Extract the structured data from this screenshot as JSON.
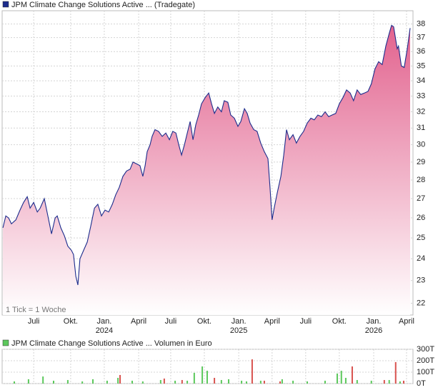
{
  "chart_data": [
    {
      "type": "area",
      "note": "1 Tick = 1 Woche",
      "log_scale": true,
      "grid": true,
      "fill": "#e2628e",
      "xlim": [
        -0.3,
        158.6
      ],
      "xticks": [
        {
          "value": 11.9,
          "label": "Juli"
        },
        {
          "value": 26.2,
          "label": "Okt."
        },
        {
          "value": 39.2,
          "label": "Jan."
        },
        {
          "value": 52.5,
          "label": "April"
        },
        {
          "value": 64.9,
          "label": "Juli"
        },
        {
          "value": 77.9,
          "label": "Okt."
        },
        {
          "value": 91.2,
          "label": "Jan."
        },
        {
          "value": 104.1,
          "label": "April"
        },
        {
          "value": 117.1,
          "label": "Juli"
        },
        {
          "value": 130.1,
          "label": "Okt."
        },
        {
          "value": 143.4,
          "label": "Jan."
        },
        {
          "value": 156.1,
          "label": "April"
        }
      ],
      "year_ticks": [
        {
          "value": 39.2,
          "label": "2024"
        },
        {
          "value": 91.2,
          "label": "2025"
        },
        {
          "value": 143.4,
          "label": "2026"
        }
      ],
      "ylim": [
        21.5,
        39
      ],
      "yticks": [
        22,
        23,
        24,
        25,
        26,
        27,
        28,
        29,
        30,
        31,
        32,
        33,
        34,
        35,
        36,
        37,
        38
      ],
      "x": [
        0,
        1.1,
        2.2,
        3.3,
        5.0,
        6.6,
        8.0,
        9.4,
        10.5,
        11.9,
        13.3,
        14.4,
        16.0,
        17.4,
        18.8,
        20.2,
        21.0,
        22.4,
        23.8,
        25.1,
        26.5,
        27.3,
        28.2,
        29.0,
        29.8,
        31.2,
        32.6,
        34.0,
        35.4,
        36.7,
        38.1,
        39.5,
        40.9,
        42.3,
        43.6,
        45.0,
        46.4,
        47.8,
        49.2,
        50.3,
        51.7,
        53.0,
        54.1,
        55.0,
        55.8,
        56.9,
        57.7,
        58.8,
        60.2,
        61.6,
        63.0,
        64.4,
        65.7,
        66.9,
        68.0,
        69.1,
        70.2,
        71.3,
        72.4,
        73.5,
        74.6,
        75.7,
        76.8,
        78.2,
        79.6,
        80.7,
        81.8,
        83.1,
        84.5,
        85.6,
        87.0,
        88.1,
        89.5,
        90.9,
        92.0,
        93.4,
        94.5,
        95.6,
        97.0,
        98.3,
        99.7,
        101.1,
        102.5,
        103.3,
        104.1,
        104.9,
        106.1,
        107.5,
        108.6,
        109.7,
        110.8,
        112.2,
        113.5,
        114.9,
        116.3,
        117.7,
        119.1,
        120.4,
        121.8,
        123.2,
        124.6,
        126.0,
        127.3,
        128.7,
        130.1,
        131.5,
        132.9,
        134.3,
        135.6,
        137.0,
        138.4,
        139.8,
        141.2,
        142.5,
        143.9,
        145.3,
        146.7,
        148.1,
        149.4,
        150.3,
        151.1,
        152.5,
        153.0,
        154.1,
        155.2,
        156.4,
        157.5
      ],
      "series": [
        {
          "name": "JPM Climate Change Solutions Active ... (Tradegate)",
          "color": "#1c2c8c",
          "values": [
            25.5,
            26.1,
            26.0,
            25.7,
            25.9,
            26.4,
            26.8,
            27.1,
            26.5,
            26.8,
            26.3,
            26.5,
            27.0,
            26.1,
            25.2,
            26.0,
            26.1,
            25.5,
            25.1,
            24.6,
            24.4,
            24.2,
            23.2,
            22.8,
            24.0,
            24.4,
            24.8,
            25.6,
            26.5,
            26.7,
            26.1,
            26.4,
            26.3,
            26.7,
            27.2,
            27.6,
            28.2,
            28.5,
            28.6,
            29.0,
            28.9,
            28.8,
            28.2,
            28.8,
            29.6,
            30.0,
            30.5,
            30.9,
            30.8,
            30.5,
            30.7,
            30.3,
            30.8,
            30.7,
            30.0,
            29.4,
            30.0,
            30.7,
            31.4,
            30.3,
            31.2,
            31.8,
            32.5,
            32.9,
            33.2,
            32.5,
            31.9,
            32.3,
            32.0,
            32.7,
            32.6,
            31.8,
            31.6,
            31.1,
            31.4,
            32.2,
            31.9,
            31.3,
            30.9,
            30.8,
            30.1,
            29.6,
            29.2,
            27.6,
            25.9,
            26.5,
            27.3,
            28.2,
            29.4,
            30.9,
            30.3,
            30.6,
            30.1,
            30.5,
            30.8,
            31.3,
            31.6,
            31.5,
            31.8,
            31.7,
            32.0,
            31.7,
            31.8,
            31.9,
            32.5,
            32.9,
            33.4,
            33.2,
            32.7,
            33.4,
            33.1,
            33.2,
            33.3,
            33.8,
            34.8,
            35.3,
            35.1,
            36.4,
            37.3,
            37.9,
            37.8,
            36.2,
            36.4,
            35.0,
            34.9,
            36.2,
            37.7
          ]
        }
      ]
    },
    {
      "type": "bar",
      "grid": true,
      "xlim": [
        -0.3,
        158.6
      ],
      "ylim": [
        0,
        300000
      ],
      "yticks": [
        {
          "value": 0,
          "label": "0T"
        },
        {
          "value": 100000,
          "label": "100T"
        },
        {
          "value": 200000,
          "label": "200T"
        },
        {
          "value": 300000,
          "label": "300T"
        }
      ],
      "series": [
        {
          "name": "JPM Climate Change Solutions Active ... Volumen in Euro",
          "color": "#5cc85c",
          "x": [
            4.4,
            9.9,
            15.5,
            19.6,
            25.1,
            30.7,
            34.8,
            40.3,
            44.5,
            45.3,
            50.0,
            54.1,
            61.0,
            62.4,
            66.6,
            69.3,
            71.3,
            74.0,
            77.1,
            79.0,
            81.8,
            84.5,
            87.3,
            92.3,
            94.2,
            96.4,
            99.7,
            101.1,
            107.2,
            108.0,
            112.2,
            117.7,
            124.6,
            129.3,
            130.9,
            132.6,
            135.1,
            137.0,
            142.5,
            147.5,
            149.4,
            151.9,
            153.6,
            155.0
          ],
          "values": [
            19000,
            38000,
            62000,
            25000,
            31000,
            19000,
            38000,
            25000,
            50000,
            75000,
            25000,
            19000,
            31000,
            44000,
            25000,
            31000,
            25000,
            94000,
            150000,
            112000,
            50000,
            31000,
            38000,
            25000,
            19000,
            212000,
            25000,
            25000,
            19000,
            38000,
            25000,
            19000,
            25000,
            88000,
            112000,
            50000,
            150000,
            31000,
            25000,
            31000,
            31000,
            188000,
            19000,
            25000
          ],
          "colors": [
            "#5cc85c",
            "#5cc85c",
            "#5cc85c",
            "#5cc85c",
            "#5cc85c",
            "#5cc85c",
            "#5cc85c",
            "#5cc85c",
            "#5cc85c",
            "#d9534f",
            "#5cc85c",
            "#5cc85c",
            "#5cc85c",
            "#d9534f",
            "#5cc85c",
            "#d9534f",
            "#5cc85c",
            "#5cc85c",
            "#5cc85c",
            "#5cc85c",
            "#d9534f",
            "#5cc85c",
            "#5cc85c",
            "#5cc85c",
            "#5cc85c",
            "#d9534f",
            "#5cc85c",
            "#d9534f",
            "#d9534f",
            "#5cc85c",
            "#5cc85c",
            "#5cc85c",
            "#5cc85c",
            "#5cc85c",
            "#5cc85c",
            "#5cc85c",
            "#d9534f",
            "#5cc85c",
            "#5cc85c",
            "#d9534f",
            "#5cc85c",
            "#d9534f",
            "#5cc85c",
            "#d9534f"
          ]
        }
      ]
    }
  ]
}
